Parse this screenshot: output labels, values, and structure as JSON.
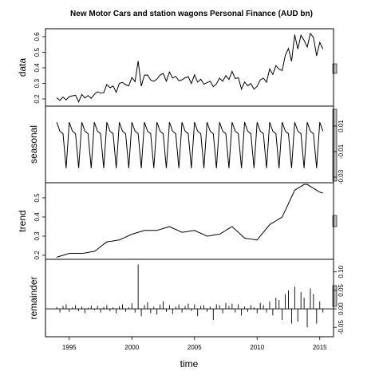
{
  "chart_data": {
    "type": "stl",
    "title": "New Motor Cars and station wagons Personal Finance (AUD bn)",
    "xlabel": "time",
    "xlim": [
      1993.1,
      2016.1
    ],
    "xticks": [
      1995,
      2000,
      2005,
      2010,
      2015
    ],
    "x": [
      1994,
      1994.25,
      1994.5,
      1994.75,
      1995,
      1995.25,
      1995.5,
      1995.75,
      1996,
      1996.25,
      1996.5,
      1996.75,
      1997,
      1997.25,
      1997.5,
      1997.75,
      1998,
      1998.25,
      1998.5,
      1998.75,
      1999,
      1999.25,
      1999.5,
      1999.75,
      2000,
      2000.25,
      2000.5,
      2000.75,
      2001,
      2001.25,
      2001.5,
      2001.75,
      2002,
      2002.25,
      2002.5,
      2002.75,
      2003,
      2003.25,
      2003.5,
      2003.75,
      2004,
      2004.25,
      2004.5,
      2004.75,
      2005,
      2005.25,
      2005.5,
      2005.75,
      2006,
      2006.25,
      2006.5,
      2006.75,
      2007,
      2007.25,
      2007.5,
      2007.75,
      2008,
      2008.25,
      2008.5,
      2008.75,
      2009,
      2009.25,
      2009.5,
      2009.75,
      2010,
      2010.25,
      2010.5,
      2010.75,
      2011,
      2011.25,
      2011.5,
      2011.75,
      2012,
      2012.25,
      2012.5,
      2012.75,
      2013,
      2013.25,
      2013.5,
      2013.75,
      2014,
      2014.25,
      2014.5,
      2014.75,
      2015,
      2015.25
    ],
    "color": "#000000",
    "panels": [
      {
        "name": "data",
        "style": "line",
        "yaxis": "left",
        "ylim": [
          0.154,
          0.651
        ],
        "yticks": [
          0.2,
          0.3,
          0.4,
          0.5,
          0.6
        ],
        "values": [
          0.208,
          0.191,
          0.212,
          0.194,
          0.215,
          0.22,
          0.224,
          0.181,
          0.229,
          0.206,
          0.222,
          0.204,
          0.229,
          0.246,
          0.239,
          0.24,
          0.293,
          0.272,
          0.283,
          0.243,
          0.3,
          0.306,
          0.291,
          0.284,
          0.338,
          0.311,
          0.444,
          0.282,
          0.353,
          0.354,
          0.322,
          0.313,
          0.328,
          0.353,
          0.364,
          0.314,
          0.373,
          0.334,
          0.345,
          0.317,
          0.323,
          0.336,
          0.343,
          0.299,
          0.355,
          0.308,
          0.327,
          0.295,
          0.305,
          0.314,
          0.279,
          0.297,
          0.333,
          0.314,
          0.35,
          0.325,
          0.377,
          0.331,
          0.336,
          0.264,
          0.309,
          0.285,
          0.299,
          0.263,
          0.281,
          0.322,
          0.334,
          0.307,
          0.393,
          0.358,
          0.414,
          0.391,
          0.383,
          0.481,
          0.524,
          0.442,
          0.613,
          0.521,
          0.609,
          0.577,
          0.533,
          0.621,
          0.594,
          0.477,
          0.563,
          0.521
        ]
      },
      {
        "name": "seasonal",
        "style": "line",
        "yaxis": "right",
        "ylim": [
          -0.0344,
          0.0256
        ],
        "yticks": [
          -0.03,
          -0.01,
          0.01
        ],
        "values": [
          0.013,
          0.006,
          0.004,
          -0.023,
          0.013,
          0.006,
          0.004,
          -0.023,
          0.013,
          0.006,
          0.004,
          -0.023,
          0.013,
          0.006,
          0.004,
          -0.023,
          0.013,
          0.006,
          0.004,
          -0.023,
          0.013,
          0.006,
          0.004,
          -0.023,
          0.013,
          0.006,
          0.004,
          -0.023,
          0.013,
          0.006,
          0.004,
          -0.023,
          0.013,
          0.006,
          0.004,
          -0.023,
          0.013,
          0.006,
          0.004,
          -0.023,
          0.013,
          0.006,
          0.004,
          -0.023,
          0.013,
          0.006,
          0.004,
          -0.023,
          0.013,
          0.006,
          0.004,
          -0.023,
          0.013,
          0.006,
          0.004,
          -0.023,
          0.013,
          0.006,
          0.004,
          -0.023,
          0.013,
          0.006,
          0.004,
          -0.023,
          0.013,
          0.006,
          0.004,
          -0.023,
          0.013,
          0.006,
          0.004,
          -0.023,
          0.013,
          0.006,
          0.004,
          -0.023,
          0.013,
          0.006,
          0.004,
          -0.023,
          0.013,
          0.006,
          0.004,
          -0.023,
          0.013,
          0.006
        ]
      },
      {
        "name": "trend",
        "style": "line",
        "yaxis": "left",
        "ylim": [
          0.179,
          0.579
        ],
        "yticks": [
          0.2,
          0.3,
          0.4,
          0.5
        ],
        "values": [
          0.19,
          0.195,
          0.2,
          0.205,
          0.21,
          0.21,
          0.21,
          0.21,
          0.21,
          0.212,
          0.215,
          0.218,
          0.22,
          0.232,
          0.245,
          0.258,
          0.27,
          0.272,
          0.275,
          0.278,
          0.28,
          0.288,
          0.295,
          0.303,
          0.31,
          0.315,
          0.32,
          0.325,
          0.33,
          0.33,
          0.33,
          0.33,
          0.33,
          0.335,
          0.34,
          0.345,
          0.35,
          0.342,
          0.335,
          0.328,
          0.32,
          0.322,
          0.325,
          0.328,
          0.33,
          0.322,
          0.315,
          0.308,
          0.3,
          0.302,
          0.305,
          0.308,
          0.31,
          0.32,
          0.33,
          0.34,
          0.35,
          0.335,
          0.32,
          0.305,
          0.29,
          0.287,
          0.285,
          0.282,
          0.28,
          0.3,
          0.32,
          0.34,
          0.36,
          0.37,
          0.38,
          0.39,
          0.4,
          0.435,
          0.47,
          0.505,
          0.54,
          0.55,
          0.56,
          0.57,
          0.57,
          0.56,
          0.55,
          0.54,
          0.53,
          0.525
        ]
      },
      {
        "name": "remainder",
        "style": "bars",
        "yaxis": "right",
        "zero_line": true,
        "ylim": [
          -0.0755,
          0.134
        ],
        "yticks": [
          -0.05,
          {
            "value": 0,
            "label": "0.00"
          },
          0.05,
          {
            "value": 0.1,
            "label": "0.10"
          }
        ],
        "values": [
          0.005,
          -0.01,
          0.008,
          0.012,
          -0.008,
          0.004,
          0.01,
          -0.006,
          0.006,
          -0.012,
          0.003,
          0.009,
          -0.004,
          0.008,
          -0.01,
          0.005,
          0.01,
          -0.006,
          0.004,
          -0.012,
          0.007,
          0.012,
          -0.008,
          0.004,
          0.015,
          -0.01,
          0.12,
          -0.02,
          0.01,
          0.018,
          -0.012,
          0.006,
          -0.015,
          0.012,
          0.02,
          -0.008,
          0.01,
          -0.014,
          0.006,
          0.012,
          -0.01,
          0.008,
          0.014,
          -0.006,
          0.012,
          -0.02,
          0.008,
          0.01,
          -0.008,
          0.006,
          -0.03,
          0.012,
          0.01,
          -0.012,
          0.016,
          0.008,
          0.014,
          -0.01,
          0.012,
          -0.018,
          0.006,
          -0.008,
          0.01,
          0.004,
          -0.012,
          0.016,
          0.01,
          -0.01,
          0.02,
          -0.018,
          0.03,
          0.024,
          -0.03,
          0.04,
          0.05,
          -0.04,
          0.06,
          -0.035,
          0.045,
          0.03,
          -0.05,
          0.055,
          0.04,
          -0.04,
          0.02,
          -0.01
        ]
      }
    ]
  }
}
